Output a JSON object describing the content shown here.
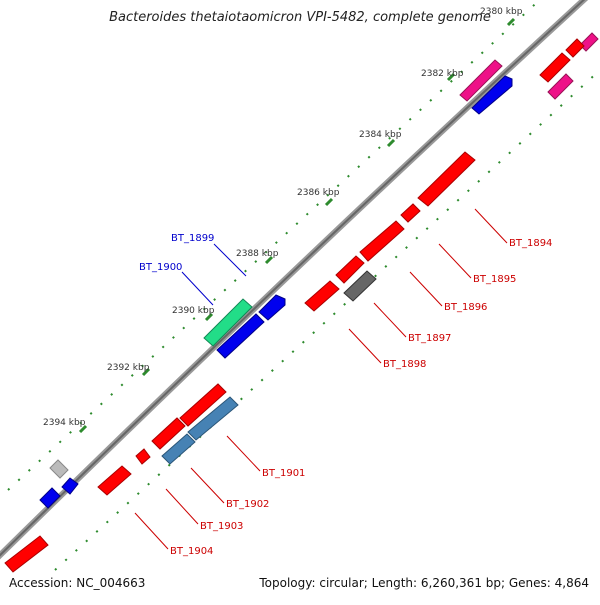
{
  "title": "Bacteroides thetaiotaomicron VPI-5482, complete genome",
  "footer": {
    "accession": "Accession: NC_004663",
    "summary": "Topology: circular; Length: 6,260,361 bp; Genes: 4,864"
  },
  "ticks": [
    {
      "label": "2380 kbp",
      "kbp": 2380
    },
    {
      "label": "2382 kbp",
      "kbp": 2382
    },
    {
      "label": "2384 kbp",
      "kbp": 2384
    },
    {
      "label": "2386 kbp",
      "kbp": 2386
    },
    {
      "label": "2388 kbp",
      "kbp": 2388
    },
    {
      "label": "2390 kbp",
      "kbp": 2390
    },
    {
      "label": "2392 kbp",
      "kbp": 2392
    },
    {
      "label": "2394 kbp",
      "kbp": 2394
    }
  ],
  "genes_outer": [
    {
      "label": "BT_1899",
      "color": "#0000cc"
    },
    {
      "label": "BT_1900",
      "color": "#0000cc"
    }
  ],
  "genes_inner": [
    {
      "label": "BT_1894",
      "color": "#cc0000"
    },
    {
      "label": "BT_1895",
      "color": "#cc0000"
    },
    {
      "label": "BT_1896",
      "color": "#cc0000"
    },
    {
      "label": "BT_1897",
      "color": "#cc0000"
    },
    {
      "label": "BT_1898",
      "color": "#cc0000"
    },
    {
      "label": "BT_1901",
      "color": "#cc0000"
    },
    {
      "label": "BT_1902",
      "color": "#cc0000"
    },
    {
      "label": "BT_1903",
      "color": "#cc0000"
    },
    {
      "label": "BT_1904",
      "color": "#cc0000"
    }
  ],
  "colors": {
    "backbone": "#888888",
    "tick": "#2e8b2e",
    "red": "#ff0000",
    "blue": "#0000ee",
    "green": "#22dd88",
    "pink": "#ee1188",
    "steel": "#4682b4",
    "gray": "#666666",
    "lightgray": "#bbbbbb"
  }
}
